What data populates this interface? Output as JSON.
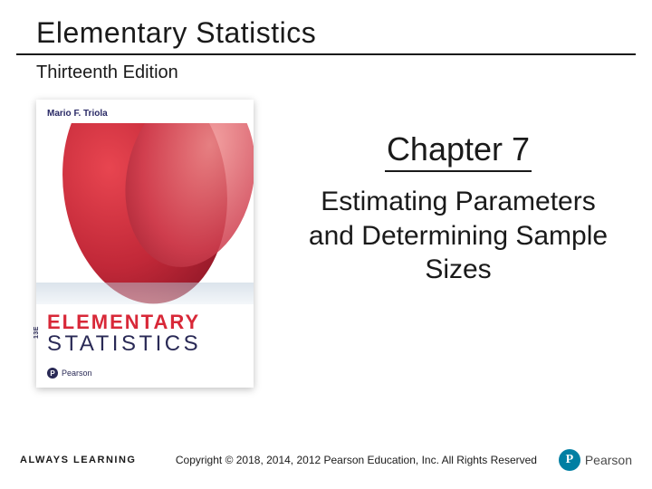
{
  "header": {
    "title": "Elementary Statistics",
    "edition": "Thirteenth Edition"
  },
  "book_cover": {
    "author": "Mario F. Triola",
    "title_line1": "ELEMENTARY",
    "title_line2": "STATISTICS",
    "edition_tag": "13E",
    "publisher": "Pearson",
    "publisher_glyph": "P",
    "colors": {
      "sail_primary": "#c12838",
      "sail_light": "#f09090",
      "text_navy": "#2a2a56",
      "text_red": "#d82838"
    }
  },
  "chapter": {
    "heading": "Chapter 7",
    "description": "Estimating Parameters and Determining Sample Sizes"
  },
  "footer": {
    "tagline": "ALWAYS LEARNING",
    "copyright": "Copyright © 2018, 2014, 2012 Pearson Education, Inc. All Rights Reserved",
    "publisher_name": "Pearson",
    "publisher_glyph": "P",
    "logo_color": "#007fa3"
  }
}
